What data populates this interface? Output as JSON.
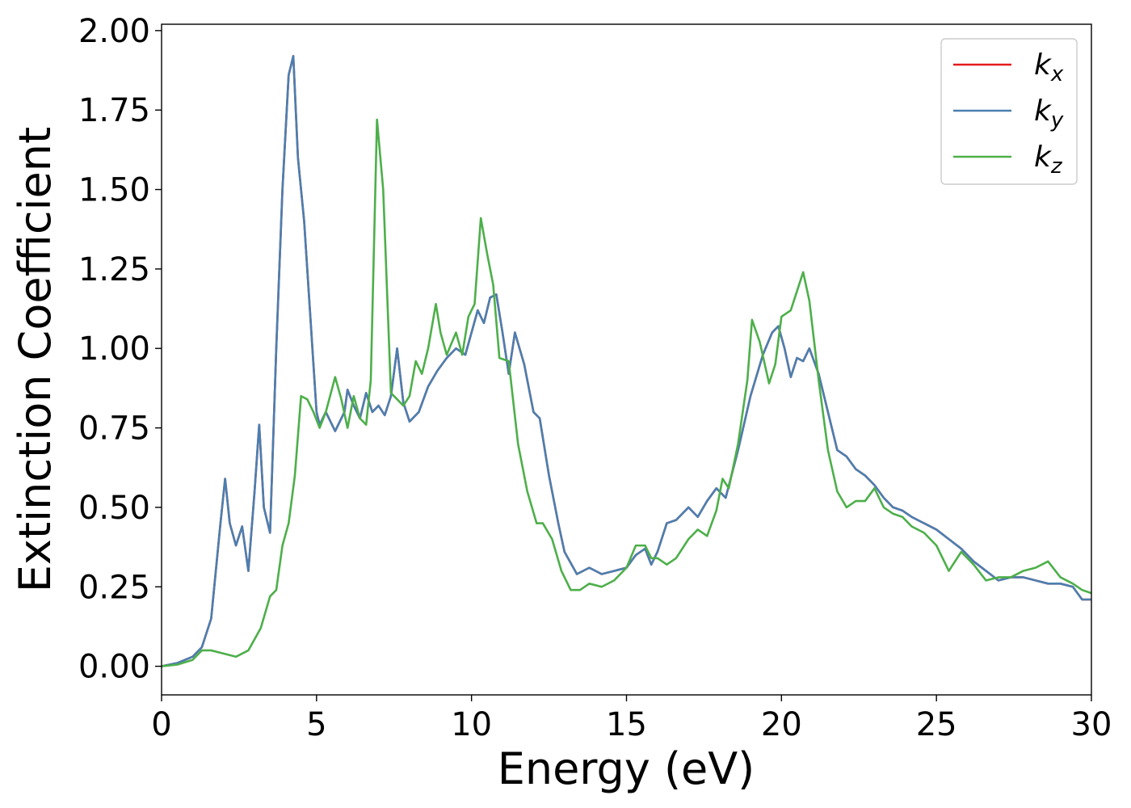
{
  "chart_data": {
    "type": "line",
    "xlabel": "Energy (eV)",
    "ylabel": "Extinction Coefficient",
    "xlim": [
      0,
      30
    ],
    "ylim": [
      -0.09,
      2.02
    ],
    "xticks": [
      0,
      5,
      10,
      15,
      20,
      25,
      30
    ],
    "xtick_labels": [
      "0",
      "5",
      "10",
      "15",
      "20",
      "25",
      "30"
    ],
    "yticks": [
      0,
      0.25,
      0.5,
      0.75,
      1.0,
      1.25,
      1.5,
      1.75,
      2.0
    ],
    "ytick_labels": [
      "0.00",
      "0.25",
      "0.50",
      "0.75",
      "1.00",
      "1.25",
      "1.50",
      "1.75",
      "2.00"
    ],
    "grid": false,
    "legend_position": "top-right",
    "series": [
      {
        "name": "k",
        "sub": "x",
        "color": "#e41a1c",
        "x": [
          0,
          0.5,
          1.0,
          1.3,
          1.6,
          1.9,
          2.05,
          2.2,
          2.4,
          2.6,
          2.8,
          3.0,
          3.15,
          3.3,
          3.5,
          3.7,
          3.9,
          4.1,
          4.25,
          4.4,
          4.6,
          4.8,
          5.0,
          5.1,
          5.3,
          5.6,
          5.9,
          6.0,
          6.2,
          6.4,
          6.6,
          6.8,
          7.0,
          7.2,
          7.4,
          7.6,
          7.8,
          8.0,
          8.3,
          8.6,
          8.9,
          9.2,
          9.5,
          9.8,
          10.0,
          10.2,
          10.4,
          10.6,
          10.8,
          11.0,
          11.2,
          11.4,
          11.7,
          12.0,
          12.2,
          12.5,
          12.8,
          13.0,
          13.4,
          13.8,
          14.2,
          14.6,
          15.0,
          15.3,
          15.6,
          15.8,
          16.0,
          16.3,
          16.6,
          17.0,
          17.3,
          17.6,
          17.9,
          18.2,
          18.6,
          19.0,
          19.4,
          19.7,
          19.9,
          20.1,
          20.3,
          20.5,
          20.7,
          20.9,
          21.2,
          21.5,
          21.8,
          22.1,
          22.4,
          22.7,
          23.0,
          23.3,
          23.6,
          23.9,
          24.2,
          24.6,
          25.0,
          25.4,
          25.8,
          26.2,
          26.6,
          27.0,
          27.4,
          27.8,
          28.2,
          28.6,
          29.0,
          29.4,
          29.7,
          30.0
        ],
        "y": [
          0.0,
          0.01,
          0.03,
          0.06,
          0.15,
          0.45,
          0.59,
          0.45,
          0.38,
          0.44,
          0.3,
          0.55,
          0.76,
          0.5,
          0.42,
          1.0,
          1.5,
          1.86,
          1.92,
          1.6,
          1.4,
          1.1,
          0.8,
          0.76,
          0.8,
          0.74,
          0.8,
          0.87,
          0.82,
          0.78,
          0.86,
          0.8,
          0.82,
          0.79,
          0.85,
          1.0,
          0.83,
          0.77,
          0.8,
          0.88,
          0.93,
          0.97,
          1.0,
          0.98,
          1.05,
          1.12,
          1.08,
          1.16,
          1.17,
          1.05,
          0.92,
          1.05,
          0.95,
          0.8,
          0.78,
          0.6,
          0.45,
          0.36,
          0.29,
          0.31,
          0.29,
          0.3,
          0.31,
          0.35,
          0.37,
          0.32,
          0.36,
          0.45,
          0.46,
          0.5,
          0.47,
          0.52,
          0.56,
          0.53,
          0.68,
          0.85,
          0.98,
          1.05,
          1.07,
          1.0,
          0.91,
          0.97,
          0.96,
          1.0,
          0.92,
          0.8,
          0.68,
          0.66,
          0.62,
          0.6,
          0.57,
          0.53,
          0.5,
          0.49,
          0.47,
          0.45,
          0.43,
          0.4,
          0.37,
          0.33,
          0.3,
          0.27,
          0.28,
          0.28,
          0.27,
          0.26,
          0.26,
          0.25,
          0.21,
          0.21
        ]
      },
      {
        "name": "k",
        "sub": "y",
        "color": "#4a7fb0",
        "x": [
          0,
          0.5,
          1.0,
          1.3,
          1.6,
          1.9,
          2.05,
          2.2,
          2.4,
          2.6,
          2.8,
          3.0,
          3.15,
          3.3,
          3.5,
          3.7,
          3.9,
          4.1,
          4.25,
          4.4,
          4.6,
          4.8,
          5.0,
          5.1,
          5.3,
          5.6,
          5.9,
          6.0,
          6.2,
          6.4,
          6.6,
          6.8,
          7.0,
          7.2,
          7.4,
          7.6,
          7.8,
          8.0,
          8.3,
          8.6,
          8.9,
          9.2,
          9.5,
          9.8,
          10.0,
          10.2,
          10.4,
          10.6,
          10.8,
          11.0,
          11.2,
          11.4,
          11.7,
          12.0,
          12.2,
          12.5,
          12.8,
          13.0,
          13.4,
          13.8,
          14.2,
          14.6,
          15.0,
          15.3,
          15.6,
          15.8,
          16.0,
          16.3,
          16.6,
          17.0,
          17.3,
          17.6,
          17.9,
          18.2,
          18.6,
          19.0,
          19.4,
          19.7,
          19.9,
          20.1,
          20.3,
          20.5,
          20.7,
          20.9,
          21.2,
          21.5,
          21.8,
          22.1,
          22.4,
          22.7,
          23.0,
          23.3,
          23.6,
          23.9,
          24.2,
          24.6,
          25.0,
          25.4,
          25.8,
          26.2,
          26.6,
          27.0,
          27.4,
          27.8,
          28.2,
          28.6,
          29.0,
          29.4,
          29.7,
          30.0
        ],
        "y": [
          0.0,
          0.01,
          0.03,
          0.06,
          0.15,
          0.45,
          0.59,
          0.45,
          0.38,
          0.44,
          0.3,
          0.55,
          0.76,
          0.5,
          0.42,
          1.0,
          1.5,
          1.86,
          1.92,
          1.6,
          1.4,
          1.1,
          0.8,
          0.76,
          0.8,
          0.74,
          0.8,
          0.87,
          0.82,
          0.78,
          0.86,
          0.8,
          0.82,
          0.79,
          0.85,
          1.0,
          0.83,
          0.77,
          0.8,
          0.88,
          0.93,
          0.97,
          1.0,
          0.98,
          1.05,
          1.12,
          1.08,
          1.16,
          1.17,
          1.05,
          0.92,
          1.05,
          0.95,
          0.8,
          0.78,
          0.6,
          0.45,
          0.36,
          0.29,
          0.31,
          0.29,
          0.3,
          0.31,
          0.35,
          0.37,
          0.32,
          0.36,
          0.45,
          0.46,
          0.5,
          0.47,
          0.52,
          0.56,
          0.53,
          0.68,
          0.85,
          0.98,
          1.05,
          1.07,
          1.0,
          0.91,
          0.97,
          0.96,
          1.0,
          0.92,
          0.8,
          0.68,
          0.66,
          0.62,
          0.6,
          0.57,
          0.53,
          0.5,
          0.49,
          0.47,
          0.45,
          0.43,
          0.4,
          0.37,
          0.33,
          0.3,
          0.27,
          0.28,
          0.28,
          0.27,
          0.26,
          0.26,
          0.25,
          0.21,
          0.21
        ]
      },
      {
        "name": "k",
        "sub": "z",
        "color": "#4daf4a",
        "x": [
          0,
          0.5,
          1.0,
          1.3,
          1.6,
          2.0,
          2.4,
          2.8,
          3.2,
          3.5,
          3.7,
          3.9,
          4.1,
          4.3,
          4.5,
          4.7,
          4.9,
          5.1,
          5.3,
          5.6,
          5.8,
          6.0,
          6.2,
          6.4,
          6.6,
          6.75,
          6.95,
          7.15,
          7.4,
          7.6,
          7.8,
          8.0,
          8.2,
          8.4,
          8.6,
          8.85,
          9.0,
          9.2,
          9.5,
          9.7,
          9.9,
          10.1,
          10.3,
          10.5,
          10.7,
          10.9,
          11.2,
          11.5,
          11.8,
          12.1,
          12.3,
          12.6,
          12.9,
          13.2,
          13.5,
          13.8,
          14.2,
          14.6,
          15.0,
          15.3,
          15.6,
          15.8,
          16.0,
          16.3,
          16.6,
          17.0,
          17.3,
          17.6,
          17.9,
          18.1,
          18.3,
          18.6,
          18.9,
          19.05,
          19.3,
          19.6,
          19.8,
          20.0,
          20.3,
          20.5,
          20.7,
          20.9,
          21.2,
          21.5,
          21.8,
          22.1,
          22.4,
          22.7,
          23.0,
          23.3,
          23.6,
          23.9,
          24.2,
          24.6,
          25.0,
          25.4,
          25.8,
          26.2,
          26.6,
          27.0,
          27.4,
          27.8,
          28.2,
          28.6,
          29.0,
          29.4,
          29.7,
          30.0
        ],
        "y": [
          0.0,
          0.005,
          0.02,
          0.05,
          0.05,
          0.04,
          0.03,
          0.05,
          0.12,
          0.22,
          0.24,
          0.38,
          0.45,
          0.6,
          0.85,
          0.84,
          0.8,
          0.75,
          0.8,
          0.91,
          0.84,
          0.75,
          0.85,
          0.78,
          0.76,
          0.9,
          1.72,
          1.5,
          0.86,
          0.84,
          0.82,
          0.85,
          0.96,
          0.92,
          1.0,
          1.14,
          1.05,
          0.98,
          1.05,
          0.98,
          1.1,
          1.14,
          1.41,
          1.3,
          1.2,
          0.97,
          0.96,
          0.7,
          0.55,
          0.45,
          0.45,
          0.4,
          0.3,
          0.24,
          0.24,
          0.26,
          0.25,
          0.27,
          0.31,
          0.38,
          0.38,
          0.34,
          0.34,
          0.32,
          0.34,
          0.4,
          0.43,
          0.41,
          0.49,
          0.59,
          0.56,
          0.7,
          0.9,
          1.09,
          1.02,
          0.89,
          0.95,
          1.1,
          1.12,
          1.18,
          1.24,
          1.15,
          0.9,
          0.68,
          0.55,
          0.5,
          0.52,
          0.52,
          0.56,
          0.5,
          0.48,
          0.47,
          0.44,
          0.42,
          0.38,
          0.3,
          0.36,
          0.32,
          0.27,
          0.28,
          0.28,
          0.3,
          0.31,
          0.33,
          0.28,
          0.26,
          0.24,
          0.23
        ]
      }
    ]
  }
}
